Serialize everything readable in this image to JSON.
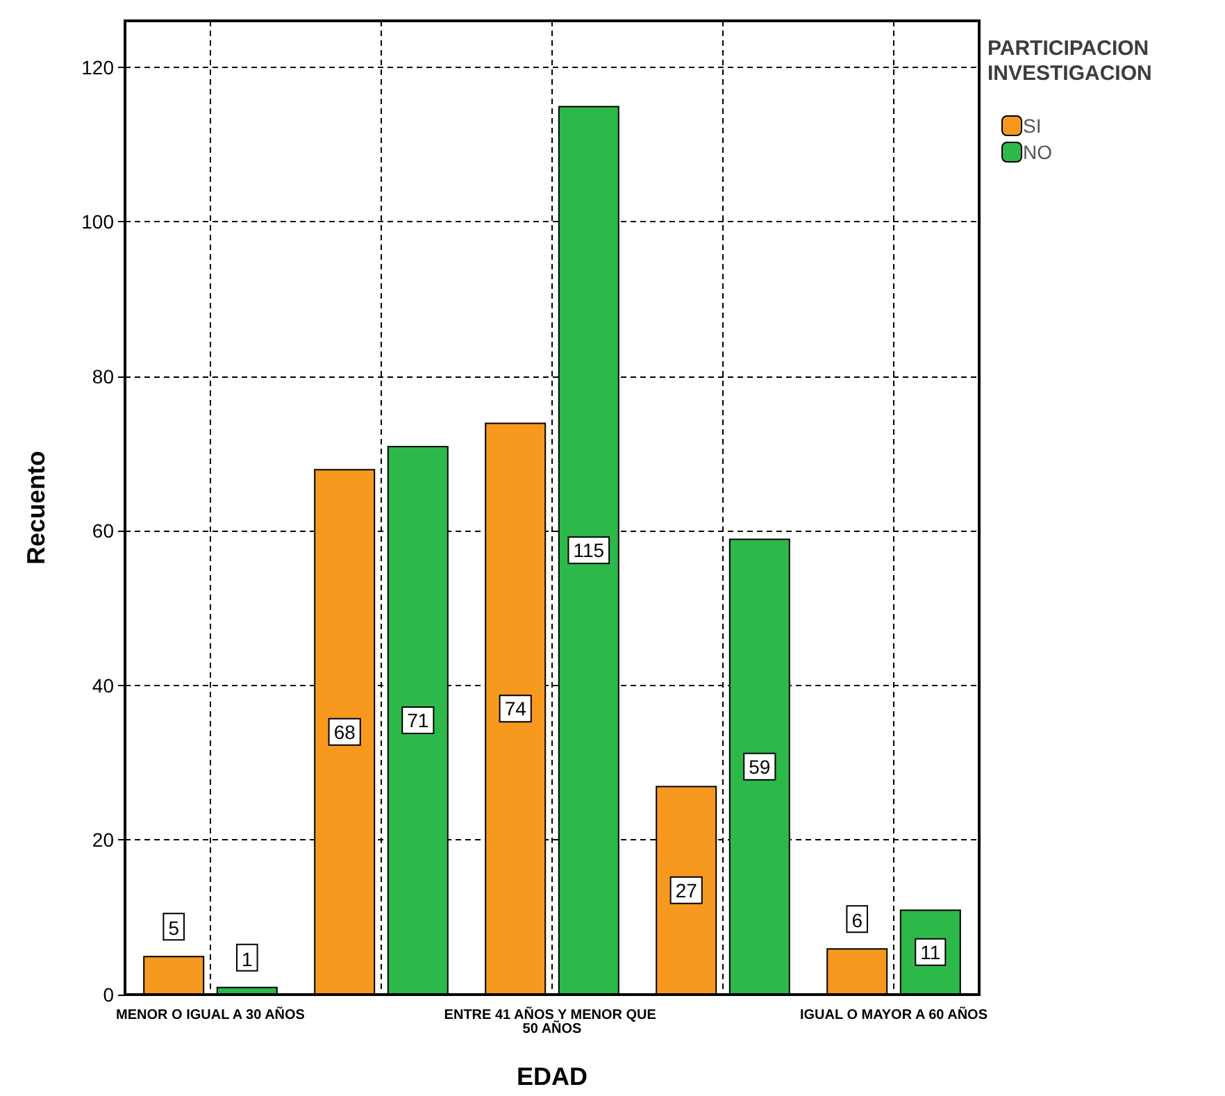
{
  "chart_data": {
    "type": "bar",
    "categories": [
      "MENOR O IGUAL A 30 AÑOS",
      null,
      "ENTRE 41 AÑOS Y MENOR QUE 50 AÑOS",
      null,
      "IGUAL O MAYOR A 60 AÑOS"
    ],
    "series": [
      {
        "name": "SI",
        "color": "#f7991f",
        "values": [
          5,
          68,
          74,
          27,
          6
        ]
      },
      {
        "name": "NO",
        "color": "#2db84a",
        "values": [
          1,
          71,
          115,
          59,
          11
        ]
      }
    ],
    "xlabel": "EDAD",
    "ylabel": "Recuento",
    "legend_title": "PARTICIPACION INVESTIGACION",
    "ylim": [
      0,
      126
    ],
    "yticks": [
      0,
      20,
      40,
      60,
      80,
      100,
      120
    ],
    "grid": true,
    "legend": "top right",
    "data_labels": true
  }
}
